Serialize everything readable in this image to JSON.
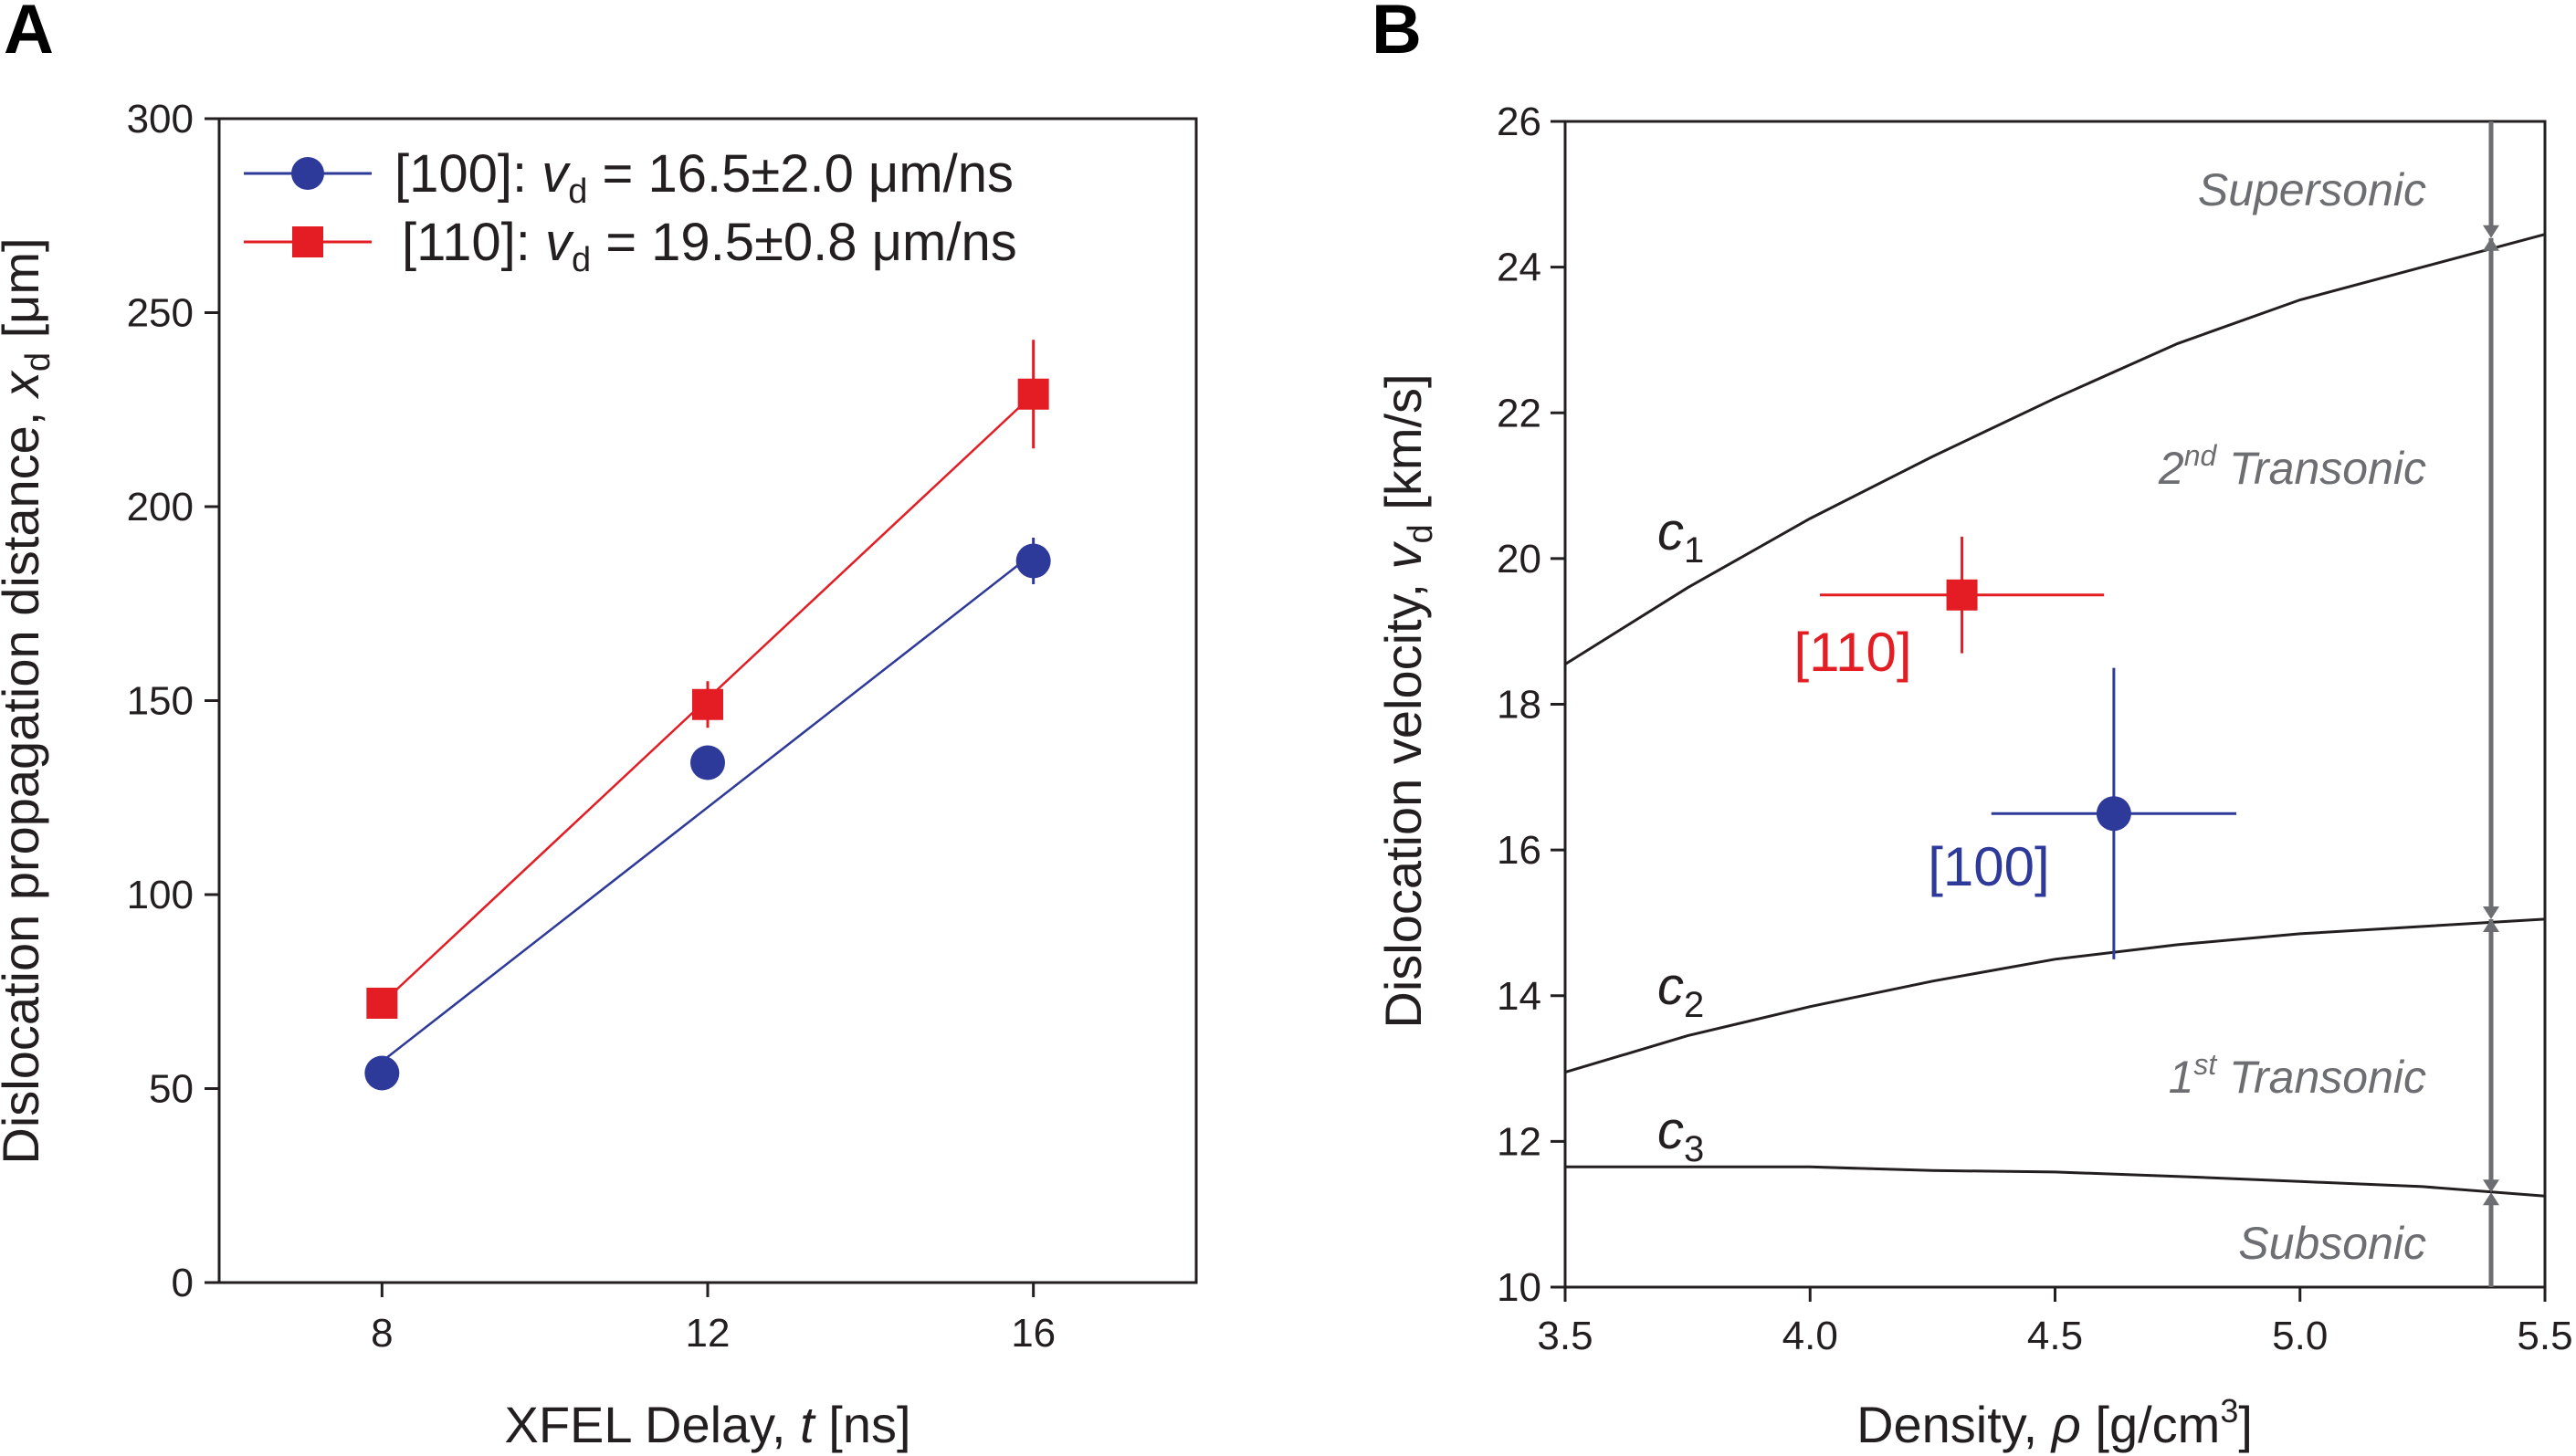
{
  "colors": {
    "blue": "#2e3a9a",
    "red": "#e31d23",
    "axis": "#231f20",
    "gray": "#6d6e71"
  },
  "panelA": {
    "letter": "A",
    "xlabel_pre": "XFEL Delay, ",
    "xlabel_var": "t",
    "xlabel_post": " [ns]",
    "ylabel_pre": "Dislocation propagation distance, ",
    "ylabel_var": "x",
    "ylabel_sub": "d",
    "ylabel_post": " [μm]",
    "legend": [
      {
        "dir": "[100]",
        "colon": ": ",
        "var": "v",
        "sub": "d",
        "eq": " = 16.5±2.0 μm/ns"
      },
      {
        "dir": "[110]",
        "colon": ": ",
        "var": "v",
        "sub": "d",
        "eq": " = 19.5±0.8 μm/ns"
      }
    ]
  },
  "panelB": {
    "letter": "B",
    "xlabel_pre": "Density, ",
    "xlabel_var": "ρ",
    "xlabel_post": " [g/cm",
    "xlabel_sup": "3",
    "xlabel_end": "]",
    "ylabel_pre": "Dislocation velocity, ",
    "ylabel_var": "v",
    "ylabel_sub": "d",
    "ylabel_post": " [km/s]",
    "curve_labels": [
      {
        "var": "c",
        "sub": "1"
      },
      {
        "var": "c",
        "sub": "2"
      },
      {
        "var": "c",
        "sub": "3"
      }
    ],
    "regimes": [
      {
        "pre": "Supersonic",
        "sup": "",
        "post": ""
      },
      {
        "pre": "2",
        "sup": "nd",
        "post": " Transonic"
      },
      {
        "pre": "1",
        "sup": "st",
        "post": " Transonic"
      },
      {
        "pre": "Subsonic",
        "sup": "",
        "post": ""
      }
    ],
    "point_labels": [
      "[110]",
      "[100]"
    ]
  },
  "chart_data": [
    {
      "type": "scatter",
      "panel": "A",
      "xlabel": "XFEL Delay, t [ns]",
      "ylabel": "Dislocation propagation distance, xd [μm]",
      "xlim": [
        6,
        18
      ],
      "ylim": [
        0,
        300
      ],
      "xticks": [
        8,
        12,
        16
      ],
      "yticks": [
        0,
        50,
        100,
        150,
        200,
        250,
        300
      ],
      "legend_position": "top-left",
      "grid": false,
      "series": [
        {
          "name": "[100]: vd = 16.5±2.0 μm/ns",
          "marker": "circle",
          "color": "#2e3a9a",
          "x": [
            8,
            12,
            16
          ],
          "y": [
            54,
            134,
            186
          ],
          "yerr": [
            2,
            2,
            6
          ],
          "fit_line": {
            "x": [
              8,
              16
            ],
            "y": [
              57,
              188
            ]
          }
        },
        {
          "name": "[110]: vd = 19.5±0.8 μm/ns",
          "marker": "square",
          "color": "#e31d23",
          "x": [
            8,
            12,
            16
          ],
          "y": [
            72,
            149,
            229
          ],
          "yerr": [
            4,
            6,
            14
          ],
          "fit_line": {
            "x": [
              8,
              16
            ],
            "y": [
              72,
              229
            ]
          }
        }
      ]
    },
    {
      "type": "line",
      "panel": "B",
      "xlabel": "Density, ρ [g/cm3]",
      "ylabel": "Dislocation velocity, vd [km/s]",
      "xlim": [
        3.5,
        5.5
      ],
      "ylim": [
        10,
        26
      ],
      "xticks": [
        3.5,
        4.0,
        4.5,
        5.0,
        5.5
      ],
      "yticks": [
        10,
        12,
        14,
        16,
        18,
        20,
        22,
        24,
        26
      ],
      "grid": false,
      "series": [
        {
          "name": "c1",
          "x": [
            3.5,
            3.75,
            4.0,
            4.25,
            4.5,
            4.75,
            5.0,
            5.25,
            5.5
          ],
          "y": [
            18.55,
            19.6,
            20.55,
            21.4,
            22.2,
            22.95,
            23.55,
            24.0,
            24.45
          ]
        },
        {
          "name": "c2",
          "x": [
            3.5,
            3.75,
            4.0,
            4.25,
            4.5,
            4.75,
            5.0,
            5.25,
            5.5
          ],
          "y": [
            12.95,
            13.45,
            13.85,
            14.2,
            14.5,
            14.7,
            14.85,
            14.95,
            15.05
          ]
        },
        {
          "name": "c3",
          "x": [
            3.5,
            3.75,
            4.0,
            4.25,
            4.5,
            4.75,
            5.0,
            5.25,
            5.5
          ],
          "y": [
            11.65,
            11.65,
            11.65,
            11.6,
            11.58,
            11.52,
            11.45,
            11.38,
            11.25
          ]
        }
      ],
      "points": [
        {
          "name": "[110]",
          "marker": "square",
          "color": "#e31d23",
          "x": 4.31,
          "y": 19.5,
          "xerr": [
            0.29,
            0.29
          ],
          "yerr": [
            0.8,
            0.8
          ]
        },
        {
          "name": "[100]",
          "marker": "circle",
          "color": "#2e3a9a",
          "x": 4.62,
          "y": 16.5,
          "xerr": [
            0.25,
            0.25
          ],
          "yerr": [
            2.0,
            2.0
          ]
        }
      ],
      "regime_arrows_x": 5.39,
      "regime_bounds": [
        {
          "name": "Supersonic",
          "from": 26.0,
          "to": 24.4
        },
        {
          "name": "2nd Transonic",
          "from": 24.4,
          "to": 15.05
        },
        {
          "name": "1st Transonic",
          "from": 15.05,
          "to": 11.3
        },
        {
          "name": "Subsonic",
          "from": 10.0,
          "to": 11.3
        }
      ]
    }
  ]
}
